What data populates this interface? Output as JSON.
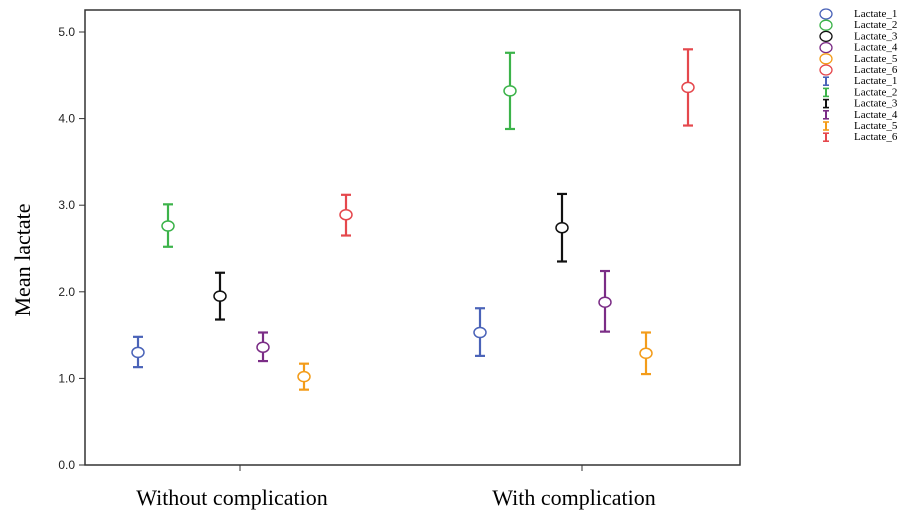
{
  "chart_data": {
    "type": "scatter",
    "title": "",
    "xlabel": "",
    "ylabel": "Mean lactate",
    "categories": [
      "Without complication",
      "With complication"
    ],
    "ylim": [
      0,
      5
    ],
    "yticks": [
      "0.0",
      "1.0",
      "2.0",
      "3.0",
      "4.0",
      "5.0"
    ],
    "grid": false,
    "legend_position": "right",
    "series": [
      {
        "name": "Lactate_1",
        "color": "#4a63b8",
        "mean": [
          1.3,
          1.53
        ],
        "ci_low": [
          1.13,
          1.26
        ],
        "ci_high": [
          1.48,
          1.81
        ]
      },
      {
        "name": "Lactate_2",
        "color": "#3cb34a",
        "mean": [
          2.76,
          4.32
        ],
        "ci_low": [
          2.52,
          3.88
        ],
        "ci_high": [
          3.01,
          4.76
        ]
      },
      {
        "name": "Lactate_3",
        "color": "#111111",
        "mean": [
          1.95,
          2.74
        ],
        "ci_low": [
          1.68,
          2.35
        ],
        "ci_high": [
          2.22,
          3.13
        ]
      },
      {
        "name": "Lactate_4",
        "color": "#7b2d86",
        "mean": [
          1.36,
          1.88
        ],
        "ci_low": [
          1.2,
          1.54
        ],
        "ci_high": [
          1.53,
          2.24
        ]
      },
      {
        "name": "Lactate_5",
        "color": "#f39c1a",
        "mean": [
          1.02,
          1.29
        ],
        "ci_low": [
          0.87,
          1.05
        ],
        "ci_high": [
          1.17,
          1.53
        ]
      },
      {
        "name": "Lactate_6",
        "color": "#e5484d",
        "mean": [
          2.89,
          4.36
        ],
        "ci_low": [
          2.65,
          3.92
        ],
        "ci_high": [
          3.12,
          4.8
        ]
      }
    ]
  }
}
